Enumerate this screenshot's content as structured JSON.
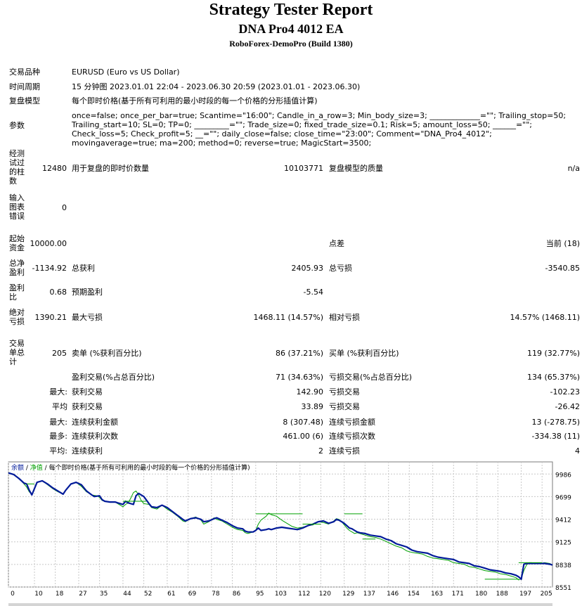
{
  "header": {
    "title": "Strategy Tester Report",
    "ea_name": "DNA Pro4 4012 EA",
    "server": "RoboForex-DemoPro (Build 1380)"
  },
  "info": {
    "symbol_label": "交易品种",
    "symbol_value": "EURUSD (Euro vs US Dollar)",
    "period_label": "时间周期",
    "period_value": "15 分钟图 2023.01.01 22:04 - 2023.06.30 20:59 (2023.01.01 - 2023.06.30)",
    "model_label": "复盘模型",
    "model_value": "每个即时价格(基于所有可利用的最小时段的每一个价格的分形插值计算)",
    "params_label": "参数",
    "params_value": "once=false; once_per_bar=true; Scantime=\"16:00\"; Candle_in_a_row=3; Min_body_size=3; _____________=\"\"; Trailing_stop=50; Trailing_start=10; SL=0; TP=0; _________=\"\"; Trade_size=0; fixed_trade_size=0.1; Risk=5; amount_loss=50; ______=\"\"; Check_loss=5; Check_profit=5; __=\"\"; daily_close=false; close_time=\"23:00\"; Comment=\"DNA_Pro4_4012\"; movingaverage=true; ma=200; method=0; reverse=true; MagicStart=3500;"
  },
  "stats": {
    "bars_label": "经测试过的柱数",
    "bars_value": "12480",
    "ticks_label": "用于复盘的即时价数量",
    "ticks_value": "10103771",
    "quality_label": "复盘模型的质量",
    "quality_value": "n/a",
    "errors_label": "输入图表错误",
    "errors_value": "0",
    "deposit_label": "起始资金",
    "deposit_value": "10000.00",
    "spread_label": "点差",
    "spread_value": "当前 (18)",
    "net_label": "总净盈利",
    "net_value": "-1134.92",
    "gross_profit_label": "总获利",
    "gross_profit_value": "2405.93",
    "gross_loss_label": "总亏损",
    "gross_loss_value": "-3540.85",
    "pf_label": "盈利比",
    "pf_value": "0.68",
    "payoff_label": "预期盈利",
    "payoff_value": "-5.54",
    "dd_label": "绝对亏损",
    "dd_value": "1390.21",
    "max_dd_label": "最大亏损",
    "max_dd_value": "1468.11 (14.57%)",
    "rel_dd_label": "相对亏损",
    "rel_dd_value": "14.57% (1468.11)",
    "trades_label": "交易单总计",
    "trades_value": "205",
    "short_label": "卖单 (%获利百分比)",
    "short_value": "86 (37.21%)",
    "long_label": "买单 (%获利百分比)",
    "long_value": "119 (32.77%)",
    "profit_trades_label": "盈利交易(%占总百分比)",
    "profit_trades_value": "71 (34.63%)",
    "loss_trades_label": "亏损交易(%占总百分比)",
    "loss_trades_value": "134 (65.37%)",
    "max_prefix": "最大:",
    "largest_profit_label": "获利交易",
    "largest_profit_value": "142.90",
    "largest_loss_label": "亏损交易",
    "largest_loss_value": "-102.23",
    "avg_prefix": "平均",
    "avg_profit_label": "获利交易",
    "avg_profit_value": "33.89",
    "avg_loss_label": "亏损交易",
    "avg_loss_value": "-26.42",
    "max2_prefix": "最大:",
    "cons_wins_label": "连续获利金额",
    "cons_wins_value": "8 (307.48)",
    "cons_losses_label": "连续亏损金额",
    "cons_losses_value": "13 (-278.75)",
    "most_prefix": "最多:",
    "cons_profit_label": "连续获利次数",
    "cons_profit_value": "461.00 (6)",
    "cons_loss_label": "连续亏损次数",
    "cons_loss_value": "-334.38 (11)",
    "avg2_prefix": "平均:",
    "avg_wins_label": "连续获利",
    "avg_wins_value": "2",
    "avg_losses_label": "连续亏损",
    "avg_losses_value": "4"
  },
  "chart_legend": {
    "balance": "余额",
    "sep1": " / ",
    "equity": "净值",
    "sep2": " / ",
    "model": "每个即时价格(基于所有可利用的最小时段的每一个价格的分形插值计算)"
  },
  "colors": {
    "balance": "#001a99",
    "equity": "#00a000",
    "grid": "#c8c8c8"
  },
  "chart_data": {
    "type": "line",
    "xlabel": "",
    "ylabel": "",
    "xlim": [
      0,
      209
    ],
    "ylim": [
      8551,
      10140
    ],
    "x_ticks": [
      0,
      10,
      18,
      27,
      35,
      44,
      52,
      61,
      69,
      78,
      86,
      95,
      103,
      112,
      120,
      129,
      137,
      146,
      154,
      163,
      171,
      180,
      188,
      197,
      205
    ],
    "y_ticks": [
      9986,
      9699,
      9412,
      9125,
      8838,
      8551
    ],
    "series": [
      {
        "name": "余额",
        "x": [
          0,
          2,
          4,
          6,
          7,
          8,
          9,
          11,
          12,
          13,
          15,
          17,
          19,
          21,
          22,
          24,
          26,
          28,
          30,
          32,
          33,
          35,
          36,
          37,
          39,
          41,
          42,
          43,
          44,
          45,
          46,
          48,
          49,
          50,
          52,
          54,
          55,
          57,
          59,
          61,
          63,
          65,
          67,
          68,
          70,
          72,
          74,
          75,
          77,
          79,
          80,
          82,
          84,
          86,
          88,
          90,
          91,
          92,
          94,
          95,
          96,
          97,
          99,
          100,
          101,
          103,
          105,
          107,
          109,
          111,
          113,
          115,
          117,
          119,
          121,
          123,
          125,
          126,
          127,
          128,
          129,
          130,
          131,
          132,
          133,
          134,
          135,
          137,
          139,
          141,
          143,
          145,
          147,
          149,
          151,
          153,
          155,
          157,
          159,
          161,
          163,
          165,
          167,
          169,
          171,
          173,
          175,
          177,
          179,
          181,
          183,
          185,
          187,
          189,
          191,
          193,
          195,
          196,
          197,
          198,
          199,
          200,
          201,
          202,
          204,
          206,
          208,
          209
        ],
        "y": [
          10000,
          9980,
          9930,
          9870,
          9860,
          9780,
          9720,
          9880,
          9890,
          9900,
          9860,
          9810,
          9770,
          9730,
          9780,
          9860,
          9880,
          9850,
          9770,
          9720,
          9700,
          9710,
          9660,
          9640,
          9630,
          9630,
          9620,
          9610,
          9600,
          9640,
          9620,
          9600,
          9710,
          9740,
          9700,
          9610,
          9570,
          9560,
          9590,
          9560,
          9510,
          9460,
          9410,
          9390,
          9420,
          9430,
          9410,
          9380,
          9390,
          9420,
          9430,
          9400,
          9370,
          9330,
          9300,
          9290,
          9260,
          9250,
          9250,
          9270,
          9300,
          9270,
          9280,
          9290,
          9280,
          9300,
          9310,
          9300,
          9290,
          9280,
          9300,
          9330,
          9350,
          9380,
          9390,
          9360,
          9380,
          9410,
          9400,
          9380,
          9360,
          9330,
          9300,
          9290,
          9270,
          9250,
          9240,
          9230,
          9210,
          9200,
          9190,
          9160,
          9140,
          9100,
          9080,
          9060,
          9020,
          9000,
          8990,
          8980,
          8950,
          8930,
          8920,
          8910,
          8900,
          8870,
          8860,
          8850,
          8820,
          8810,
          8790,
          8770,
          8760,
          8750,
          8730,
          8720,
          8700,
          8680,
          8650,
          8840,
          8850,
          8850,
          8850,
          8850,
          8850,
          8850,
          8840,
          8830
        ]
      },
      {
        "name": "净值",
        "x": [
          0,
          2,
          4,
          6,
          7,
          8,
          9,
          11,
          13,
          15,
          17,
          19,
          21,
          22,
          24,
          26,
          28,
          30,
          32,
          34,
          35,
          36,
          37,
          39,
          41,
          42,
          43,
          44,
          45,
          46,
          47,
          48,
          49,
          50,
          51,
          52,
          54,
          55,
          57,
          59,
          61,
          63,
          65,
          67,
          68,
          70,
          72,
          74,
          75,
          77,
          79,
          80,
          82,
          84,
          86,
          88,
          90,
          91,
          92,
          94,
          95,
          96,
          97,
          99,
          100,
          101,
          103,
          105,
          107,
          109,
          111,
          113,
          115,
          117,
          119,
          121,
          123,
          125,
          126,
          127,
          128,
          129,
          130,
          131,
          132,
          133,
          134,
          135,
          137,
          139,
          141,
          143,
          145,
          147,
          149,
          151,
          153,
          155,
          157,
          159,
          161,
          163,
          165,
          167,
          169,
          171,
          173,
          175,
          177,
          179,
          181,
          183,
          185,
          187,
          189,
          191,
          193,
          195,
          196,
          197,
          198,
          199,
          200,
          201,
          202,
          204,
          206,
          208,
          209
        ],
        "y": [
          10000,
          9980,
          9930,
          9860,
          9820,
          9760,
          9730,
          9880,
          9900,
          9850,
          9800,
          9760,
          9730,
          9780,
          9860,
          9880,
          9830,
          9760,
          9720,
          9710,
          9690,
          9650,
          9640,
          9630,
          9630,
          9610,
          9590,
          9570,
          9600,
          9620,
          9680,
          9750,
          9770,
          9720,
          9650,
          9610,
          9600,
          9560,
          9540,
          9590,
          9540,
          9500,
          9450,
          9390,
          9380,
          9420,
          9440,
          9400,
          9350,
          9380,
          9430,
          9410,
          9390,
          9350,
          9310,
          9280,
          9270,
          9240,
          9230,
          9250,
          9270,
          9350,
          9400,
          9450,
          9490,
          9470,
          9450,
          9400,
          9360,
          9320,
          9300,
          9310,
          9330,
          9340,
          9380,
          9370,
          9350,
          9390,
          9420,
          9410,
          9380,
          9340,
          9300,
          9270,
          9250,
          9230,
          9240,
          9230,
          9210,
          9190,
          9180,
          9160,
          9130,
          9100,
          9070,
          9050,
          9010,
          8990,
          8980,
          8970,
          8940,
          8920,
          8910,
          8900,
          8890,
          8860,
          8850,
          8840,
          8810,
          8800,
          8780,
          8760,
          8750,
          8740,
          8720,
          8710,
          8690,
          8670,
          8640,
          8660,
          8760,
          8830,
          8860,
          8860,
          8850,
          8850,
          8860,
          8850,
          8830
        ]
      }
    ],
    "step_segments": [
      {
        "from": 7,
        "to": 10,
        "y": 9860
      },
      {
        "from": 44,
        "to": 53,
        "y": 9640
      },
      {
        "from": 95,
        "to": 113,
        "y": 9480
      },
      {
        "from": 113,
        "to": 120,
        "y": 9350
      },
      {
        "from": 129,
        "to": 136,
        "y": 9480
      },
      {
        "from": 136,
        "to": 141,
        "y": 9160
      },
      {
        "from": 183,
        "to": 196,
        "y": 8650
      },
      {
        "from": 196,
        "to": 205,
        "y": 8860
      }
    ]
  }
}
